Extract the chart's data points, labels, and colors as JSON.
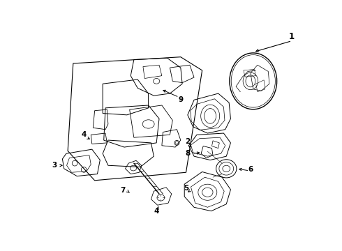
{
  "background_color": "#ffffff",
  "line_color": "#000000",
  "figsize": [
    4.9,
    3.6
  ],
  "dpi": 100,
  "lw_main": 0.7,
  "label_fontsize": 7.5
}
